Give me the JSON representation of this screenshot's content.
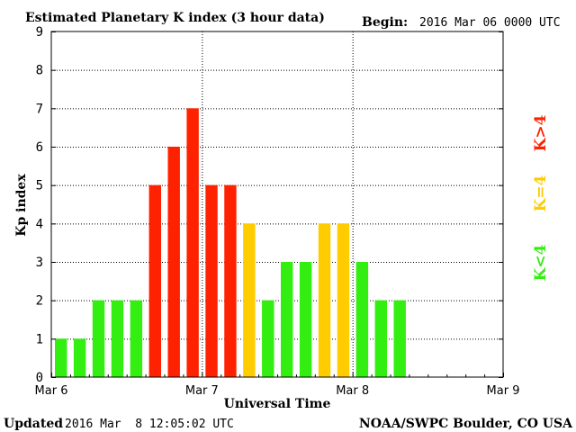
{
  "chart_data": {
    "type": "bar",
    "title": "Estimated Planetary K index (3 hour data)",
    "begin_label": "Begin:",
    "begin_value": "2016 Mar 06 0000 UTC",
    "xlabel": "Universal Time",
    "ylabel": "Kp index",
    "ylim": [
      0,
      9
    ],
    "y_ticks": [
      "0",
      "1",
      "2",
      "3",
      "4",
      "5",
      "6",
      "7",
      "8",
      "9"
    ],
    "x_ticks": [
      "Mar 6",
      "Mar 7",
      "Mar 8",
      "Mar 9"
    ],
    "interval_hours": 3,
    "total_slots": 24,
    "values": [
      1,
      1,
      2,
      2,
      2,
      5,
      6,
      7,
      5,
      5,
      4,
      2,
      3,
      3,
      4,
      4,
      3,
      2,
      2
    ],
    "grid": true,
    "legend": [
      {
        "label": "K<4",
        "color": "#33ee11"
      },
      {
        "label": "K=4",
        "color": "#ffcc00"
      },
      {
        "label": "K>4",
        "color": "#ff2200"
      }
    ],
    "legend_placement": "right",
    "colors": {
      "low": "#33ee11",
      "eq": "#ffcc00",
      "high": "#ff2200"
    }
  },
  "footer": {
    "updated_label": "Updated",
    "updated_value": "2016 Mar  8 12:05:02 UTC",
    "credit": "NOAA/SWPC Boulder, CO USA"
  }
}
